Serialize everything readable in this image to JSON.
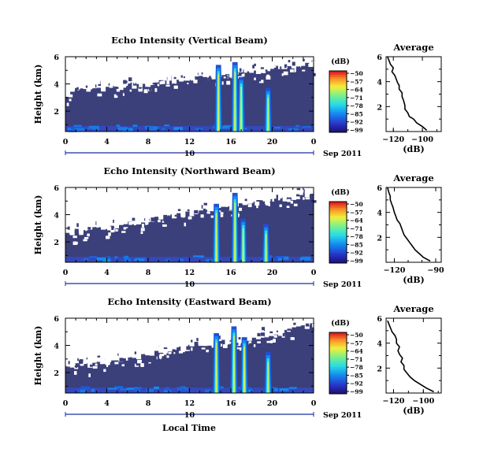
{
  "figure": {
    "xlabel": "Local Time",
    "panels_title_right": "Average"
  },
  "chart_data": [
    {
      "type": "heatmap",
      "title": "Echo Intensity (Vertical Beam)",
      "ylabel": "Height (km)",
      "xlabel": "Local Time",
      "x_ticks": [
        "0",
        "4",
        "8",
        "12",
        "16",
        "20",
        "0"
      ],
      "xlim": [
        0,
        24
      ],
      "y_ticks": [
        "2",
        "4",
        "6"
      ],
      "ylim": [
        0.5,
        6
      ],
      "date_axis": {
        "day": "10",
        "month_year": "Sep 2011"
      },
      "colorbar": {
        "unit": "(dB)",
        "ticks": [
          "-50",
          "-57",
          "-64",
          "-71",
          "-78",
          "-85",
          "-92",
          "-99"
        ],
        "range": [
          -99,
          -50
        ]
      },
      "spikes": [
        {
          "time": 14.8,
          "top_km": 5.4,
          "peak_db": -60
        },
        {
          "time": 16.4,
          "top_km": 5.6,
          "peak_db": -58
        },
        {
          "time": 17.0,
          "top_km": 4.5,
          "peak_db": -65
        },
        {
          "time": 19.6,
          "top_km": 3.7,
          "peak_db": -66
        }
      ],
      "clear_region": {
        "time_start": 0,
        "time_end": 24,
        "base_km_start": 3.3,
        "base_km_end": 5.5
      }
    },
    {
      "type": "heatmap",
      "title": "Echo Intensity (Northward Beam)",
      "ylabel": "Height (km)",
      "xlabel": "Local Time",
      "x_ticks": [
        "0",
        "4",
        "8",
        "12",
        "16",
        "20",
        "0"
      ],
      "xlim": [
        0,
        24
      ],
      "y_ticks": [
        "2",
        "4",
        "6"
      ],
      "ylim": [
        0.5,
        6
      ],
      "date_axis": {
        "day": "10",
        "month_year": "Sep 2011"
      },
      "colorbar": {
        "unit": "(dB)",
        "ticks": [
          "-50",
          "-57",
          "-64",
          "-71",
          "-78",
          "-85",
          "-92",
          "-99"
        ],
        "range": [
          -99,
          -50
        ]
      },
      "spikes": [
        {
          "time": 14.6,
          "top_km": 4.8,
          "peak_db": -62
        },
        {
          "time": 16.4,
          "top_km": 5.6,
          "peak_db": -58
        },
        {
          "time": 17.2,
          "top_km": 3.7,
          "peak_db": -65
        },
        {
          "time": 19.4,
          "top_km": 3.3,
          "peak_db": -66
        }
      ],
      "clear_region": {
        "time_start": 0,
        "time_end": 24,
        "base_km_start": 2.7,
        "base_km_end": 5.6
      }
    },
    {
      "type": "heatmap",
      "title": "Echo Intensity (Eastward Beam)",
      "ylabel": "Height (km)",
      "xlabel": "Local Time",
      "x_ticks": [
        "0",
        "4",
        "8",
        "12",
        "16",
        "20",
        "0"
      ],
      "xlim": [
        0,
        24
      ],
      "y_ticks": [
        "2",
        "4",
        "6"
      ],
      "ylim": [
        0.5,
        6
      ],
      "date_axis": {
        "day": "10",
        "month_year": "Sep 2011"
      },
      "colorbar": {
        "unit": "(dB)",
        "ticks": [
          "-50",
          "-57",
          "-64",
          "-71",
          "-78",
          "-85",
          "-92",
          "-99"
        ],
        "range": [
          -99,
          -50
        ]
      },
      "spikes": [
        {
          "time": 14.6,
          "top_km": 4.9,
          "peak_db": -60
        },
        {
          "time": 16.3,
          "top_km": 5.4,
          "peak_db": -58
        },
        {
          "time": 17.3,
          "top_km": 4.6,
          "peak_db": -64
        },
        {
          "time": 19.6,
          "top_km": 3.5,
          "peak_db": -66
        }
      ],
      "clear_region": {
        "time_start": 0,
        "time_end": 24,
        "base_km_start": 2.4,
        "base_km_end": 5.4
      }
    },
    {
      "type": "line",
      "title": "Average",
      "xlabel": "(dB)",
      "x_ticks": [
        "-120",
        "-100"
      ],
      "xlim": [
        -125,
        -87
      ],
      "y_ticks": [
        "2",
        "4",
        "6"
      ],
      "ylim": [
        0,
        6
      ],
      "profile": [
        [
          -97,
          0.1
        ],
        [
          -100,
          0.4
        ],
        [
          -104,
          0.7
        ],
        [
          -106,
          1.0
        ],
        [
          -109,
          1.2
        ],
        [
          -110,
          1.5
        ],
        [
          -112,
          1.8
        ],
        [
          -112,
          2.1
        ],
        [
          -113,
          2.5
        ],
        [
          -114,
          2.8
        ],
        [
          -114,
          3.1
        ],
        [
          -116,
          3.4
        ],
        [
          -116,
          3.7
        ],
        [
          -117,
          3.9
        ],
        [
          -118,
          4.2
        ],
        [
          -119,
          4.5
        ],
        [
          -121,
          4.8
        ],
        [
          -120,
          5.1
        ],
        [
          -122,
          5.4
        ],
        [
          -123,
          5.7
        ],
        [
          -124,
          6.0
        ]
      ]
    },
    {
      "type": "line",
      "title": "Average",
      "xlabel": "(dB)",
      "x_ticks": [
        "-120",
        "-90"
      ],
      "xlim": [
        -126,
        -86
      ],
      "y_ticks": [
        "2",
        "4",
        "6"
      ],
      "ylim": [
        0,
        6
      ],
      "profile": [
        [
          -94,
          0.1
        ],
        [
          -99,
          0.4
        ],
        [
          -102,
          0.7
        ],
        [
          -105,
          1.0
        ],
        [
          -107,
          1.3
        ],
        [
          -109,
          1.6
        ],
        [
          -111,
          1.9
        ],
        [
          -113,
          2.2
        ],
        [
          -114,
          2.5
        ],
        [
          -115,
          2.8
        ],
        [
          -116,
          3.1
        ],
        [
          -118,
          3.4
        ],
        [
          -119,
          3.7
        ],
        [
          -120,
          4.0
        ],
        [
          -121,
          4.4
        ],
        [
          -122,
          4.7
        ],
        [
          -123,
          5.0
        ],
        [
          -123,
          5.3
        ],
        [
          -124,
          5.6
        ],
        [
          -125,
          6.0
        ]
      ]
    },
    {
      "type": "line",
      "title": "Average",
      "xlabel": "(dB)",
      "x_ticks": [
        "-120",
        "-100"
      ],
      "xlim": [
        -125,
        -88
      ],
      "y_ticks": [
        "2",
        "4",
        "6"
      ],
      "ylim": [
        0,
        6
      ],
      "profile": [
        [
          -93,
          0.1
        ],
        [
          -98,
          0.4
        ],
        [
          -102,
          0.7
        ],
        [
          -106,
          1.0
        ],
        [
          -109,
          1.3
        ],
        [
          -111,
          1.6
        ],
        [
          -113,
          1.9
        ],
        [
          -113,
          2.2
        ],
        [
          -115,
          2.5
        ],
        [
          -114,
          2.8
        ],
        [
          -116,
          3.1
        ],
        [
          -117,
          3.4
        ],
        [
          -116,
          3.7
        ],
        [
          -118,
          4.0
        ],
        [
          -118,
          4.3
        ],
        [
          -119,
          4.6
        ],
        [
          -121,
          4.9
        ],
        [
          -122,
          5.2
        ],
        [
          -123,
          5.5
        ],
        [
          -124,
          5.8
        ]
      ]
    }
  ]
}
